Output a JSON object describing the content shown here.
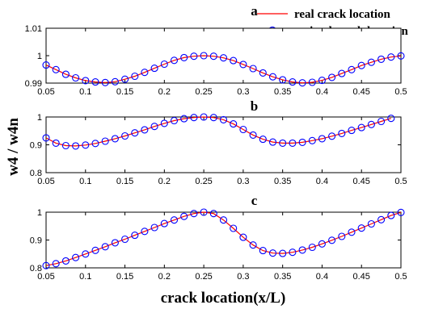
{
  "legend": {
    "real_label": "real crack location",
    "trained_label": "trained crack location",
    "line_color": "#ff0000",
    "marker_color": "#0000ff"
  },
  "ylabel": "w4 / w4n",
  "xlabel": "crack location(x/L)",
  "chart_data": [
    {
      "type": "line",
      "title": "a",
      "xlim": [
        0.05,
        0.5
      ],
      "ylim": [
        0.99,
        1.01
      ],
      "xticks": [
        "0.05",
        "0.1",
        "0.15",
        "0.2",
        "0.25",
        "0.3",
        "0.35",
        "0.4",
        "0.45",
        "0.5"
      ],
      "yticks": [
        "0.99",
        "1",
        "1.01"
      ],
      "series": [
        {
          "name": "real crack location",
          "x": [
            0.05,
            0.0625,
            0.075,
            0.0875,
            0.1,
            0.1125,
            0.125,
            0.1375,
            0.15,
            0.1625,
            0.175,
            0.1875,
            0.2,
            0.2125,
            0.225,
            0.2375,
            0.25,
            0.2625,
            0.275,
            0.2875,
            0.3,
            0.3125,
            0.325,
            0.3375,
            0.35,
            0.3625,
            0.375,
            0.3875,
            0.4,
            0.4125,
            0.425,
            0.4375,
            0.45,
            0.4625,
            0.475,
            0.4875,
            0.5
          ],
          "y": [
            0.9966,
            0.9949,
            0.9932,
            0.9919,
            0.9909,
            0.9904,
            0.9902,
            0.9905,
            0.9914,
            0.9925,
            0.9939,
            0.9954,
            0.9969,
            0.9983,
            0.9993,
            0.9998,
            1.0,
            0.9998,
            0.9992,
            0.9982,
            0.9968,
            0.9953,
            0.9937,
            0.9923,
            0.9912,
            0.9904,
            0.9901,
            0.9903,
            0.991,
            0.9921,
            0.9935,
            0.9949,
            0.9964,
            0.9976,
            0.9987,
            0.9995,
            0.9999
          ]
        },
        {
          "name": "trained crack location",
          "x": [
            0.05,
            0.0625,
            0.075,
            0.0875,
            0.1,
            0.1125,
            0.125,
            0.1375,
            0.15,
            0.1625,
            0.175,
            0.1875,
            0.2,
            0.2125,
            0.225,
            0.2375,
            0.25,
            0.2625,
            0.275,
            0.2875,
            0.3,
            0.3125,
            0.325,
            0.3375,
            0.35,
            0.3625,
            0.375,
            0.3875,
            0.4,
            0.4125,
            0.425,
            0.4375,
            0.45,
            0.4625,
            0.475,
            0.4875,
            0.5
          ],
          "y": [
            0.9966,
            0.9949,
            0.9932,
            0.9919,
            0.9909,
            0.9904,
            0.9902,
            0.9905,
            0.9914,
            0.9925,
            0.9939,
            0.9954,
            0.9969,
            0.9983,
            0.9993,
            0.9998,
            1.0,
            0.9998,
            0.9992,
            0.9982,
            0.9968,
            0.9953,
            0.9937,
            0.9923,
            0.9912,
            0.9904,
            0.9901,
            0.9903,
            0.991,
            0.9921,
            0.9935,
            0.9949,
            0.9964,
            0.9976,
            0.9987,
            0.9995,
            0.9999
          ]
        }
      ]
    },
    {
      "type": "line",
      "title": "b",
      "xlim": [
        0.05,
        0.5
      ],
      "ylim": [
        0.8,
        1.0
      ],
      "xticks": [
        "0.05",
        "0.1",
        "0.15",
        "0.2",
        "0.25",
        "0.3",
        "0.35",
        "0.4",
        "0.45",
        "0.5"
      ],
      "yticks": [
        "0.8",
        "0.9",
        "1"
      ],
      "series": [
        {
          "name": "real crack location",
          "x": [
            0.05,
            0.0625,
            0.075,
            0.0875,
            0.1,
            0.1125,
            0.125,
            0.1375,
            0.15,
            0.1625,
            0.175,
            0.1875,
            0.2,
            0.2125,
            0.225,
            0.2375,
            0.25,
            0.2625,
            0.275,
            0.2875,
            0.3,
            0.3125,
            0.325,
            0.3375,
            0.35,
            0.3625,
            0.375,
            0.3875,
            0.4,
            0.4125,
            0.425,
            0.4375,
            0.45,
            0.4625,
            0.475,
            0.4875
          ],
          "y": [
            0.925,
            0.906,
            0.897,
            0.896,
            0.899,
            0.905,
            0.913,
            0.922,
            0.932,
            0.943,
            0.954,
            0.966,
            0.977,
            0.987,
            0.994,
            0.998,
            1.0,
            0.998,
            0.99,
            0.975,
            0.955,
            0.935,
            0.92,
            0.91,
            0.906,
            0.906,
            0.909,
            0.915,
            0.922,
            0.931,
            0.941,
            0.952,
            0.962,
            0.973,
            0.984,
            0.995
          ]
        },
        {
          "name": "trained crack location",
          "x": [
            0.05,
            0.0625,
            0.075,
            0.0875,
            0.1,
            0.1125,
            0.125,
            0.1375,
            0.15,
            0.1625,
            0.175,
            0.1875,
            0.2,
            0.2125,
            0.225,
            0.2375,
            0.25,
            0.2625,
            0.275,
            0.2875,
            0.3,
            0.3125,
            0.325,
            0.3375,
            0.35,
            0.3625,
            0.375,
            0.3875,
            0.4,
            0.4125,
            0.425,
            0.4375,
            0.45,
            0.4625,
            0.475,
            0.4875
          ],
          "y": [
            0.925,
            0.906,
            0.897,
            0.896,
            0.899,
            0.905,
            0.913,
            0.922,
            0.932,
            0.943,
            0.954,
            0.966,
            0.977,
            0.987,
            0.994,
            0.998,
            1.0,
            0.998,
            0.99,
            0.975,
            0.955,
            0.935,
            0.92,
            0.91,
            0.906,
            0.906,
            0.909,
            0.915,
            0.922,
            0.931,
            0.941,
            0.952,
            0.962,
            0.973,
            0.984,
            0.995
          ]
        }
      ]
    },
    {
      "type": "line",
      "title": "c",
      "xlim": [
        0.05,
        0.5
      ],
      "ylim": [
        0.8,
        1.0
      ],
      "xticks": [
        "0.05",
        "0.1",
        "0.15",
        "0.2",
        "0.25",
        "0.3",
        "0.35",
        "0.4",
        "0.45",
        "0.5"
      ],
      "yticks": [
        "0.8",
        "0.9",
        "1"
      ],
      "series": [
        {
          "name": "real crack location",
          "x": [
            0.05,
            0.0625,
            0.075,
            0.0875,
            0.1,
            0.1125,
            0.125,
            0.1375,
            0.15,
            0.1625,
            0.175,
            0.1875,
            0.2,
            0.2125,
            0.225,
            0.2375,
            0.25,
            0.2625,
            0.275,
            0.2875,
            0.3,
            0.3125,
            0.325,
            0.3375,
            0.35,
            0.3625,
            0.375,
            0.3875,
            0.4,
            0.4125,
            0.425,
            0.4375,
            0.45,
            0.4625,
            0.475,
            0.4875,
            0.5
          ],
          "y": [
            0.808,
            0.815,
            0.825,
            0.837,
            0.85,
            0.863,
            0.876,
            0.89,
            0.903,
            0.917,
            0.931,
            0.945,
            0.959,
            0.972,
            0.985,
            0.995,
            1.0,
            0.995,
            0.972,
            0.942,
            0.91,
            0.882,
            0.862,
            0.853,
            0.852,
            0.856,
            0.864,
            0.874,
            0.886,
            0.899,
            0.913,
            0.928,
            0.943,
            0.958,
            0.973,
            0.988,
            0.999
          ]
        },
        {
          "name": "trained crack location",
          "x": [
            0.05,
            0.0625,
            0.075,
            0.0875,
            0.1,
            0.1125,
            0.125,
            0.1375,
            0.15,
            0.1625,
            0.175,
            0.1875,
            0.2,
            0.2125,
            0.225,
            0.2375,
            0.25,
            0.2625,
            0.275,
            0.2875,
            0.3,
            0.3125,
            0.325,
            0.3375,
            0.35,
            0.3625,
            0.375,
            0.3875,
            0.4,
            0.4125,
            0.425,
            0.4375,
            0.45,
            0.4625,
            0.475,
            0.4875,
            0.5
          ],
          "y": [
            0.808,
            0.815,
            0.825,
            0.837,
            0.85,
            0.863,
            0.876,
            0.89,
            0.903,
            0.917,
            0.931,
            0.945,
            0.959,
            0.972,
            0.985,
            0.995,
            1.0,
            0.995,
            0.972,
            0.942,
            0.91,
            0.882,
            0.862,
            0.853,
            0.852,
            0.856,
            0.864,
            0.874,
            0.886,
            0.899,
            0.913,
            0.928,
            0.943,
            0.958,
            0.973,
            0.988,
            0.999
          ]
        }
      ]
    }
  ]
}
